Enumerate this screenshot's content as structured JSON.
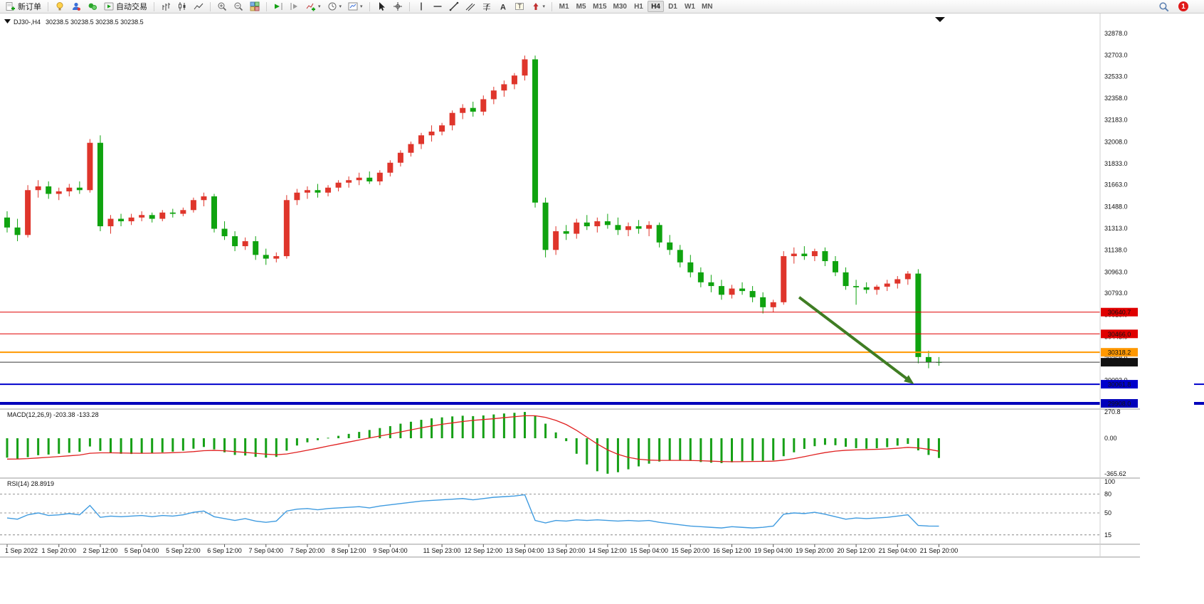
{
  "toolbar": {
    "new_order_label": "新订单",
    "autotrading_label": "自动交易",
    "timeframes": [
      "M1",
      "M5",
      "M15",
      "M30",
      "H1",
      "H4",
      "D1",
      "W1",
      "MN"
    ],
    "active_timeframe": "H4",
    "notification_badge": "1",
    "glyphs": {
      "caret": "▾",
      "fib": "ƒ",
      "text_tool": "A",
      "label_tool": "T"
    }
  },
  "chart": {
    "symbol_period": "DJ30-,H4",
    "ohlc_readout": "30238.5 30238.5 30238.5 30238.5",
    "price_axis_labels": [
      "32878.0",
      "32703.0",
      "32533.0",
      "32358.0",
      "32183.0",
      "32008.0",
      "31833.0",
      "31663.0",
      "31488.0",
      "31313.0",
      "31138.0",
      "30963.0",
      "30793.0",
      "30618.0",
      "30443.0",
      "30268.0",
      "30093.0",
      "29918.0"
    ],
    "hlines": [
      {
        "price": 30640.7,
        "label": "30640.7",
        "color": "#e00000",
        "width": 1,
        "edge_tick": false
      },
      {
        "price": 30466.0,
        "label": "30466.0",
        "color": "#e00000",
        "width": 1,
        "edge_tick": false
      },
      {
        "price": 30318.2,
        "label": "30318.2",
        "color": "#ff9800",
        "width": 2,
        "edge_tick": false
      },
      {
        "price": 30061.8,
        "label": "30061.8",
        "color": "#0000cc",
        "width": 2,
        "edge_tick": true
      },
      {
        "price": 29908.0,
        "label": "29908.0",
        "color": "#0000bb",
        "width": 4,
        "edge_tick": true
      }
    ],
    "current_price": {
      "price": 30238.5,
      "label": "30238.5",
      "label_bg": "#111111"
    },
    "arrow": {
      "from": {
        "bar": 76.5,
        "price": 30760
      },
      "to": {
        "bar": 87.6,
        "price": 30062
      },
      "color": "#3f7d23"
    }
  },
  "indicators": {
    "macd_header": "MACD(12,26,9) -203.38 -133.28",
    "macd_scale": [
      "270.8",
      "0.00",
      "-365.62"
    ],
    "rsi_header": "RSI(14) 28.8919",
    "rsi_scale": [
      "100",
      "80",
      "50",
      "15"
    ],
    "rsi_levels": [
      80,
      50,
      15
    ]
  },
  "chart_data": {
    "type": "candlestick",
    "symbol": "DJ30-",
    "period": "H4",
    "grid": false,
    "price_range": [
      29860,
      33010
    ],
    "up_color": "#df352b",
    "down_color": "#0fa30f",
    "candles": [
      [
        31400,
        31450,
        31280,
        31320
      ],
      [
        31320,
        31390,
        31210,
        31260
      ],
      [
        31260,
        31660,
        31240,
        31620
      ],
      [
        31620,
        31700,
        31560,
        31650
      ],
      [
        31650,
        31690,
        31550,
        31590
      ],
      [
        31590,
        31640,
        31540,
        31610
      ],
      [
        31610,
        31670,
        31570,
        31640
      ],
      [
        31640,
        31690,
        31590,
        31620
      ],
      [
        31620,
        32030,
        31600,
        32000
      ],
      [
        32000,
        32060,
        31290,
        31330
      ],
      [
        31330,
        31420,
        31270,
        31390
      ],
      [
        31390,
        31430,
        31330,
        31370
      ],
      [
        31370,
        31430,
        31340,
        31400
      ],
      [
        31400,
        31450,
        31370,
        31420
      ],
      [
        31420,
        31440,
        31360,
        31390
      ],
      [
        31390,
        31460,
        31370,
        31440
      ],
      [
        31440,
        31470,
        31400,
        31430
      ],
      [
        31430,
        31480,
        31410,
        31460
      ],
      [
        31460,
        31560,
        31440,
        31540
      ],
      [
        31540,
        31600,
        31490,
        31570
      ],
      [
        31570,
        31590,
        31280,
        31310
      ],
      [
        31310,
        31370,
        31220,
        31250
      ],
      [
        31250,
        31290,
        31130,
        31170
      ],
      [
        31170,
        31240,
        31140,
        31210
      ],
      [
        31210,
        31250,
        31060,
        31100
      ],
      [
        31100,
        31150,
        31020,
        31070
      ],
      [
        31070,
        31120,
        31040,
        31090
      ],
      [
        31090,
        31580,
        31070,
        31540
      ],
      [
        31540,
        31630,
        31500,
        31600
      ],
      [
        31600,
        31650,
        31550,
        31620
      ],
      [
        31620,
        31670,
        31560,
        31600
      ],
      [
        31600,
        31660,
        31570,
        31640
      ],
      [
        31640,
        31700,
        31610,
        31680
      ],
      [
        31680,
        31730,
        31640,
        31700
      ],
      [
        31700,
        31760,
        31660,
        31720
      ],
      [
        31720,
        31770,
        31670,
        31690
      ],
      [
        31690,
        31780,
        31660,
        31760
      ],
      [
        31760,
        31860,
        31730,
        31840
      ],
      [
        31840,
        31940,
        31810,
        31920
      ],
      [
        31920,
        32010,
        31890,
        31990
      ],
      [
        31990,
        32080,
        31950,
        32060
      ],
      [
        32060,
        32140,
        32010,
        32090
      ],
      [
        32090,
        32160,
        32060,
        32140
      ],
      [
        32140,
        32260,
        32100,
        32240
      ],
      [
        32240,
        32310,
        32190,
        32280
      ],
      [
        32280,
        32330,
        32210,
        32250
      ],
      [
        32250,
        32380,
        32220,
        32350
      ],
      [
        32350,
        32450,
        32310,
        32420
      ],
      [
        32420,
        32500,
        32370,
        32470
      ],
      [
        32470,
        32560,
        32430,
        32540
      ],
      [
        32540,
        32700,
        32500,
        32670
      ],
      [
        32670,
        32700,
        31480,
        31520
      ],
      [
        31520,
        31560,
        31080,
        31140
      ],
      [
        31140,
        31330,
        31100,
        31290
      ],
      [
        31290,
        31340,
        31220,
        31270
      ],
      [
        31270,
        31390,
        31230,
        31360
      ],
      [
        31360,
        31420,
        31300,
        31330
      ],
      [
        31330,
        31400,
        31280,
        31370
      ],
      [
        31370,
        31430,
        31310,
        31340
      ],
      [
        31340,
        31400,
        31260,
        31300
      ],
      [
        31300,
        31360,
        31250,
        31330
      ],
      [
        31330,
        31380,
        31270,
        31310
      ],
      [
        31310,
        31370,
        31250,
        31340
      ],
      [
        31340,
        31360,
        31160,
        31200
      ],
      [
        31200,
        31260,
        31100,
        31140
      ],
      [
        31140,
        31180,
        31000,
        31040
      ],
      [
        31040,
        31100,
        30920,
        30960
      ],
      [
        30960,
        31000,
        30840,
        30880
      ],
      [
        30880,
        30940,
        30800,
        30850
      ],
      [
        30850,
        30900,
        30740,
        30780
      ],
      [
        30780,
        30860,
        30750,
        30830
      ],
      [
        30830,
        30880,
        30780,
        30810
      ],
      [
        30810,
        30850,
        30720,
        30760
      ],
      [
        30760,
        30800,
        30630,
        30680
      ],
      [
        30680,
        30740,
        30640,
        30720
      ],
      [
        30720,
        31130,
        30700,
        31090
      ],
      [
        31090,
        31160,
        31030,
        31110
      ],
      [
        31110,
        31170,
        31060,
        31090
      ],
      [
        31090,
        31150,
        31050,
        31130
      ],
      [
        31130,
        31160,
        31010,
        31050
      ],
      [
        31050,
        31090,
        30930,
        30960
      ],
      [
        30960,
        31000,
        30820,
        30850
      ],
      [
        30850,
        30900,
        30700,
        30840
      ],
      [
        30840,
        30880,
        30790,
        30820
      ],
      [
        30820,
        30860,
        30780,
        30845
      ],
      [
        30845,
        30900,
        30810,
        30870
      ],
      [
        30870,
        30930,
        30830,
        30905
      ],
      [
        30905,
        30970,
        30860,
        30950
      ],
      [
        30950,
        30985,
        30230,
        30280
      ],
      [
        30280,
        30330,
        30190,
        30240
      ],
      [
        30240,
        30280,
        30210,
        30238.5
      ]
    ],
    "macd": {
      "histogram_color": "#16a016",
      "signal_color": "#e02020",
      "range": [
        -365.62,
        270.8
      ],
      "histogram": [
        -200,
        -210,
        -195,
        -175,
        -168,
        -160,
        -150,
        -140,
        -85,
        -130,
        -150,
        -160,
        -162,
        -158,
        -152,
        -145,
        -138,
        -128,
        -108,
        -90,
        -115,
        -145,
        -172,
        -178,
        -192,
        -200,
        -192,
        -128,
        -75,
        -42,
        -20,
        5,
        25,
        45,
        65,
        85,
        105,
        125,
        150,
        170,
        190,
        205,
        215,
        225,
        232,
        228,
        235,
        245,
        255,
        262,
        270.8,
        230,
        150,
        60,
        -30,
        -160,
        -270,
        -340,
        -365.62,
        -350,
        -320,
        -290,
        -262,
        -240,
        -228,
        -226,
        -232,
        -245,
        -252,
        -256,
        -248,
        -238,
        -232,
        -235,
        -228,
        -185,
        -145,
        -110,
        -82,
        -68,
        -72,
        -88,
        -102,
        -108,
        -103,
        -92,
        -76,
        -58,
        -125,
        -172,
        -203.38
      ],
      "signal": [
        -215,
        -214,
        -210,
        -203,
        -196,
        -189,
        -181,
        -173,
        -155,
        -150,
        -150,
        -152,
        -154,
        -155,
        -154,
        -152,
        -149,
        -145,
        -138,
        -128,
        -125,
        -129,
        -138,
        -146,
        -155,
        -164,
        -170,
        -162,
        -144,
        -124,
        -103,
        -81,
        -60,
        -39,
        -18,
        3,
        23,
        43,
        65,
        86,
        107,
        126,
        144,
        158,
        172,
        184,
        193,
        201,
        212,
        222,
        232,
        232,
        215,
        184,
        141,
        81,
        11,
        -59,
        -120,
        -166,
        -197,
        -216,
        -225,
        -228,
        -228,
        -228,
        -229,
        -232,
        -236,
        -240,
        -242,
        -241,
        -239,
        -238,
        -236,
        -226,
        -210,
        -190,
        -168,
        -148,
        -133,
        -124,
        -120,
        -117,
        -114,
        -110,
        -103,
        -94,
        -100,
        -114,
        -133.28
      ]
    },
    "rsi": {
      "line_color": "#3f9be0",
      "last": 28.8919,
      "values": [
        42,
        40,
        47,
        50,
        46,
        47,
        49,
        47,
        62,
        43,
        45,
        44,
        45,
        46,
        44,
        46,
        45,
        47,
        51,
        53,
        44,
        41,
        38,
        41,
        37,
        35,
        37,
        53,
        56,
        57,
        55,
        57,
        58,
        59,
        60,
        58,
        61,
        63,
        65,
        67,
        69,
        70,
        71,
        72,
        73,
        71,
        73,
        75,
        76,
        77,
        79,
        38,
        34,
        38,
        37,
        39,
        38,
        39,
        38,
        37,
        38,
        37,
        38,
        35,
        33,
        31,
        29,
        28,
        27,
        26,
        28,
        27,
        26,
        27,
        29,
        48,
        50,
        49,
        51,
        48,
        44,
        40,
        42,
        41,
        42,
        43,
        45,
        47,
        30,
        29,
        28.89
      ]
    },
    "time_axis": [
      {
        "bar": 0,
        "label": "1 Sep 2022"
      },
      {
        "bar": 5,
        "label": "1 Sep 20:00"
      },
      {
        "bar": 9,
        "label": "2 Sep 12:00"
      },
      {
        "bar": 13,
        "label": "5 Sep 04:00"
      },
      {
        "bar": 17,
        "label": "5 Sep 22:00"
      },
      {
        "bar": 21,
        "label": "6 Sep 12:00"
      },
      {
        "bar": 25,
        "label": "7 Sep 04:00"
      },
      {
        "bar": 29,
        "label": "7 Sep 20:00"
      },
      {
        "bar": 33,
        "label": "8 Sep 12:00"
      },
      {
        "bar": 37,
        "label": "9 Sep 04:00"
      },
      {
        "bar": 42,
        "label": "11 Sep 23:00"
      },
      {
        "bar": 46,
        "label": "12 Sep 12:00"
      },
      {
        "bar": 50,
        "label": "13 Sep 04:00"
      },
      {
        "bar": 54,
        "label": "13 Sep 20:00"
      },
      {
        "bar": 58,
        "label": "14 Sep 12:00"
      },
      {
        "bar": 62,
        "label": "15 Sep 04:00"
      },
      {
        "bar": 66,
        "label": "15 Sep 20:00"
      },
      {
        "bar": 70,
        "label": "16 Sep 12:00"
      },
      {
        "bar": 74,
        "label": "19 Sep 04:00"
      },
      {
        "bar": 78,
        "label": "19 Sep 20:00"
      },
      {
        "bar": 82,
        "label": "20 Sep 12:00"
      },
      {
        "bar": 86,
        "label": "21 Sep 04:00"
      },
      {
        "bar": 90,
        "label": "21 Sep 20:00"
      }
    ]
  }
}
